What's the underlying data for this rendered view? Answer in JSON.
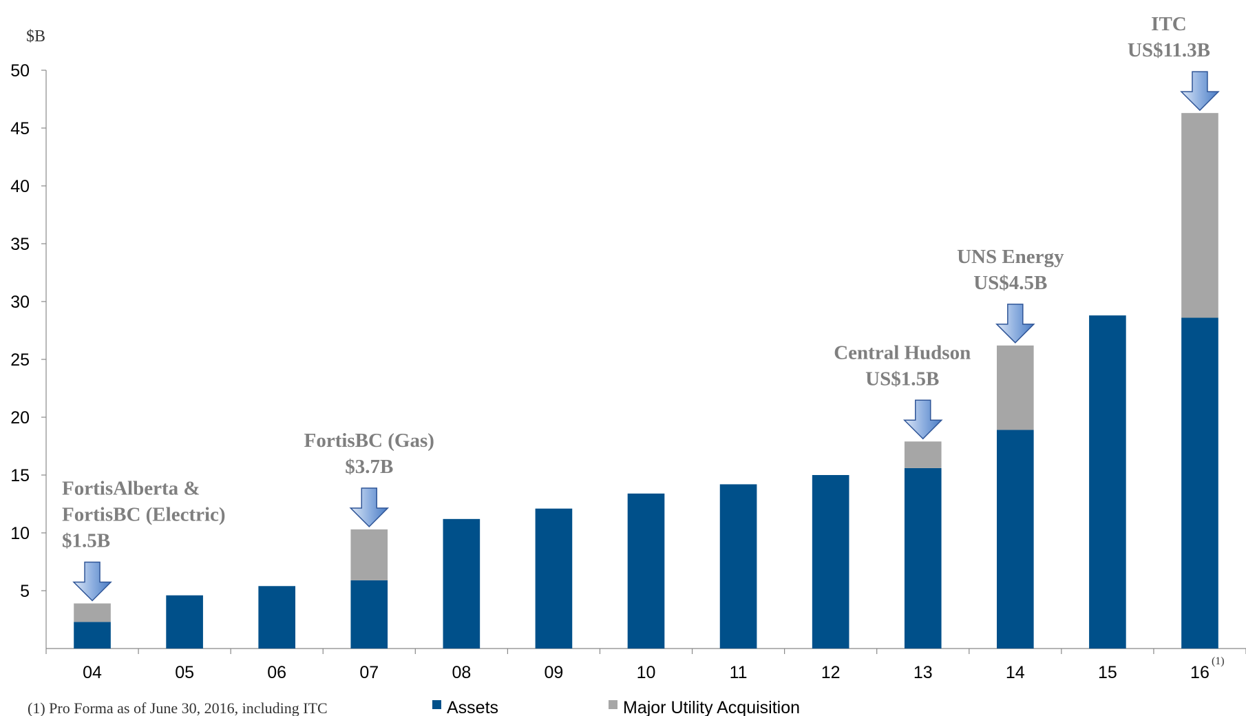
{
  "chart_data": {
    "type": "stacked_bar",
    "y_unit_label": "$B",
    "categories": [
      "04",
      "05",
      "06",
      "07",
      "08",
      "09",
      "10",
      "11",
      "12",
      "13",
      "14",
      "15",
      "16"
    ],
    "category_note_marker": "(1)",
    "series": [
      {
        "name": "Assets",
        "color": "#00508a",
        "values": [
          2.3,
          4.6,
          5.4,
          5.9,
          11.2,
          12.1,
          13.4,
          14.2,
          15.0,
          15.6,
          18.9,
          28.8,
          28.6
        ]
      },
      {
        "name": "Major Utility Acquisition",
        "color": "#a6a6a6",
        "values": [
          1.6,
          null,
          null,
          4.4,
          null,
          null,
          null,
          null,
          null,
          2.3,
          7.3,
          null,
          17.7
        ]
      }
    ],
    "ylim": [
      0,
      50
    ],
    "yticks": [
      5,
      10,
      15,
      20,
      25,
      30,
      35,
      40,
      45,
      50
    ],
    "annotations": [
      {
        "lines": [
          "FortisAlberta &",
          "FortisBC (Electric)",
          "$1.5B"
        ]
      },
      {
        "lines": [
          "FortisBC (Gas)",
          "$3.7B"
        ]
      },
      {
        "lines": [
          "Central Hudson",
          "US$1.5B"
        ]
      },
      {
        "lines": [
          "UNS Energy",
          "US$4.5B"
        ]
      },
      {
        "lines": [
          "ITC",
          "US$11.3B"
        ]
      }
    ],
    "footnote": "(1) Pro Forma as of June 30, 2016, including ITC"
  }
}
